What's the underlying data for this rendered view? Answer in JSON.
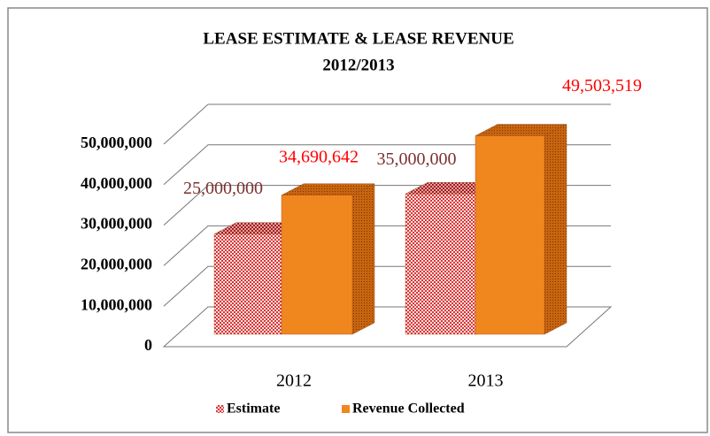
{
  "chart_data": {
    "type": "bar3d",
    "title": "LEASE ESTIMATE & LEASE REVENUE",
    "subtitle": "2012/2013",
    "categories": [
      "2012",
      "2013"
    ],
    "series": [
      {
        "name": "Estimate",
        "color": "#e04848",
        "values": [
          25000000,
          35000000
        ],
        "value_labels": [
          "25,000,000",
          "35,000,000"
        ],
        "label_color": "#7b3030"
      },
      {
        "name": "Revenue Collected",
        "color": "#f0861e",
        "values": [
          34690642,
          49503519
        ],
        "value_labels": [
          "34,690,642",
          "49,503,519"
        ],
        "label_color": "#ff0000"
      }
    ],
    "ylim": [
      0,
      50000000
    ],
    "yticks": [
      0,
      {
        "value": 10000000,
        "label": "10,000,000"
      },
      {
        "value": 20000000,
        "label": "20,000,000"
      },
      {
        "value": 30000000,
        "label": "30,000,000"
      },
      {
        "value": 40000000,
        "label": "40,000,000"
      },
      {
        "value": 50000000,
        "label": "50,000,000"
      }
    ],
    "grid": true,
    "legend": "bottom"
  }
}
